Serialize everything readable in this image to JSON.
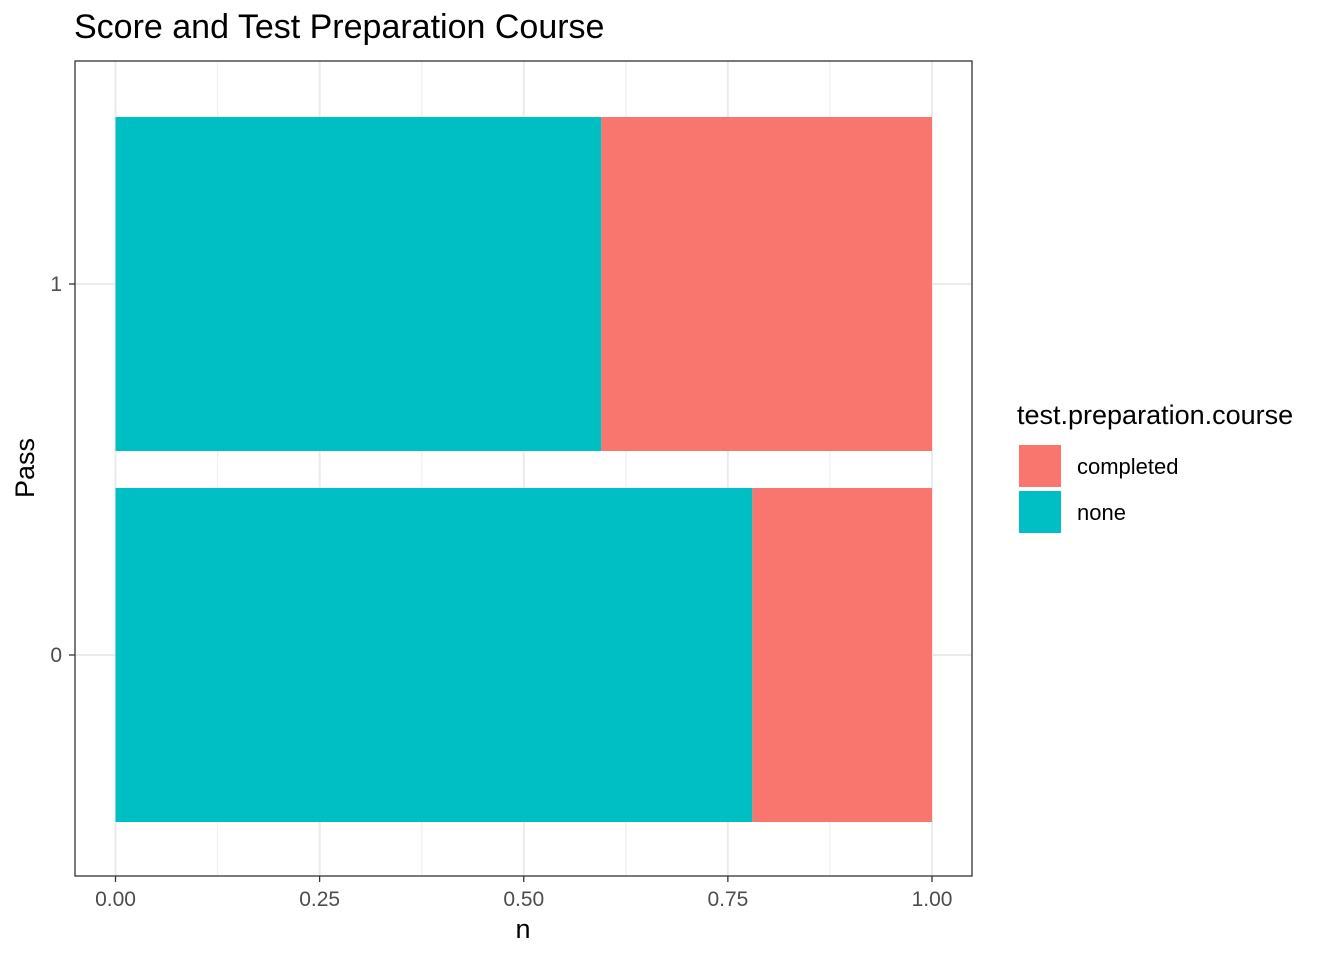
{
  "chart_data": {
    "type": "bar",
    "orientation": "horizontal",
    "stacked": "fill",
    "title": "Score and Test Preparation Course",
    "xlabel": "n",
    "ylabel": "Pass",
    "xlim": [
      0,
      1
    ],
    "x_ticks": [
      "0.00",
      "0.25",
      "0.50",
      "0.75",
      "1.00"
    ],
    "categories": [
      "0",
      "1"
    ],
    "series": [
      {
        "name": "none",
        "color": "#00BFC4",
        "values": [
          0.78,
          0.595
        ]
      },
      {
        "name": "completed",
        "color": "#F8766D",
        "values": [
          0.22,
          0.405
        ]
      }
    ],
    "legend": {
      "title": "test.preparation.course",
      "placement": "right",
      "items": [
        {
          "label": "completed",
          "color": "#F8766D"
        },
        {
          "label": "none",
          "color": "#00BFC4"
        }
      ]
    },
    "grid": true
  }
}
